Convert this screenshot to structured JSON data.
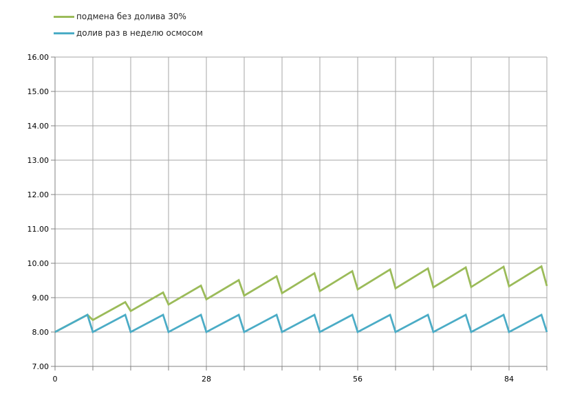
{
  "chart_data": {
    "type": "line",
    "title": "",
    "xlabel": "",
    "ylabel": "",
    "xlim": [
      0,
      91
    ],
    "ylim": [
      7,
      16
    ],
    "grid": true,
    "x_gridline_step": 7,
    "y_gridline_step": 1,
    "legend_position": "top-left",
    "x_tick_labels": [
      {
        "value": 0,
        "label": "0"
      },
      {
        "value": 28,
        "label": "28"
      },
      {
        "value": 56,
        "label": "56"
      },
      {
        "value": 84,
        "label": "84"
      }
    ],
    "y_tick_labels": [
      {
        "value": 16,
        "label": "16.00"
      },
      {
        "value": 15,
        "label": "15.00"
      },
      {
        "value": 14,
        "label": "14.00"
      },
      {
        "value": 13,
        "label": "13.00"
      },
      {
        "value": 12,
        "label": "12.00"
      },
      {
        "value": 11,
        "label": "11.00"
      },
      {
        "value": 10,
        "label": "10.00"
      },
      {
        "value": 9,
        "label": "9.00"
      },
      {
        "value": 8,
        "label": "8.00"
      },
      {
        "value": 7,
        "label": "7.00"
      }
    ],
    "series": [
      {
        "name": "подмена без долива 30%",
        "color": "#9BBB59",
        "points": [
          [
            0,
            8.0
          ],
          [
            6,
            8.5
          ],
          [
            7,
            8.35
          ],
          [
            13,
            8.87
          ],
          [
            14,
            8.61
          ],
          [
            20,
            9.15
          ],
          [
            21,
            8.8
          ],
          [
            27,
            9.35
          ],
          [
            28,
            8.95
          ],
          [
            34,
            9.51
          ],
          [
            35,
            9.06
          ],
          [
            41,
            9.62
          ],
          [
            42,
            9.13
          ],
          [
            48,
            9.71
          ],
          [
            49,
            9.19
          ],
          [
            55,
            9.77
          ],
          [
            56,
            9.24
          ],
          [
            62,
            9.82
          ],
          [
            63,
            9.27
          ],
          [
            69,
            9.85
          ],
          [
            70,
            9.3
          ],
          [
            76,
            9.88
          ],
          [
            77,
            9.31
          ],
          [
            83,
            9.9
          ],
          [
            84,
            9.33
          ],
          [
            90,
            9.91
          ],
          [
            91,
            9.34
          ]
        ]
      },
      {
        "name": "долив раз в неделю осмосом",
        "color": "#4BACC6",
        "points": [
          [
            0,
            8.0
          ],
          [
            6,
            8.5
          ],
          [
            7,
            8.0
          ],
          [
            13,
            8.5
          ],
          [
            14,
            8.0
          ],
          [
            20,
            8.5
          ],
          [
            21,
            8.0
          ],
          [
            27,
            8.5
          ],
          [
            28,
            8.0
          ],
          [
            34,
            8.5
          ],
          [
            35,
            8.0
          ],
          [
            41,
            8.5
          ],
          [
            42,
            8.0
          ],
          [
            48,
            8.5
          ],
          [
            49,
            8.0
          ],
          [
            55,
            8.5
          ],
          [
            56,
            8.0
          ],
          [
            62,
            8.5
          ],
          [
            63,
            8.0
          ],
          [
            69,
            8.5
          ],
          [
            70,
            8.0
          ],
          [
            76,
            8.5
          ],
          [
            77,
            8.0
          ],
          [
            83,
            8.5
          ],
          [
            84,
            8.0
          ],
          [
            90,
            8.5
          ],
          [
            91,
            8.0
          ]
        ]
      }
    ],
    "colors": {
      "background": "#FFFFFF",
      "gridline": "#A6A6A6",
      "axis": "#808080",
      "tick_label": "#000000",
      "legend_text": "#262626"
    }
  }
}
